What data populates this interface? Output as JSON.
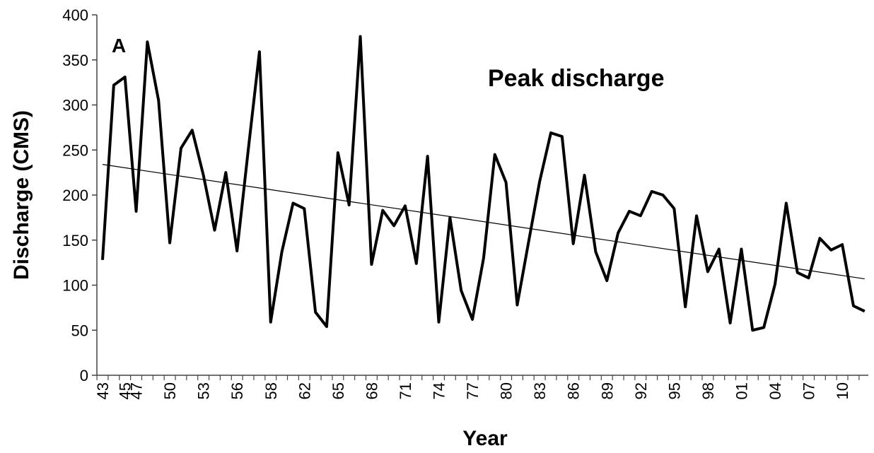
{
  "chart_data": {
    "type": "line",
    "panel_label": "A",
    "annotation": "Peak discharge",
    "x_label": "Year",
    "y_label": "Discharge (CMS)",
    "categories": [
      "43",
      null,
      "45",
      "47",
      null,
      null,
      "50",
      null,
      null,
      "53",
      null,
      null,
      "56",
      null,
      null,
      "58",
      null,
      null,
      "62",
      null,
      null,
      "65",
      null,
      null,
      "68",
      null,
      null,
      "71",
      null,
      null,
      "74",
      null,
      null,
      "77",
      null,
      null,
      "80",
      null,
      null,
      "83",
      null,
      null,
      "86",
      null,
      null,
      "89",
      null,
      null,
      "92",
      null,
      null,
      "95",
      null,
      null,
      "98",
      null,
      null,
      "01",
      null,
      null,
      "04",
      null,
      null,
      "07",
      null,
      null,
      "10",
      null,
      null
    ],
    "values": [
      128,
      322,
      331,
      182,
      370,
      305,
      147,
      252,
      272,
      222,
      161,
      225,
      138,
      250,
      359,
      59,
      137,
      191,
      185,
      70,
      54,
      247,
      189,
      376,
      123,
      183,
      166,
      188,
      124,
      243,
      59,
      175,
      94,
      62,
      130,
      245,
      214,
      78,
      147,
      215,
      269,
      265,
      146,
      222,
      137,
      105,
      158,
      182,
      177,
      204,
      200,
      185,
      76,
      177,
      115,
      140,
      58,
      140,
      50,
      53,
      101,
      191,
      114,
      108,
      152,
      139,
      145,
      77,
      71
    ],
    "trendline": [
      234,
      107
    ],
    "color": "#000000",
    "ylim": [
      0,
      400
    ],
    "yticks": [
      0,
      50,
      100,
      150,
      200,
      250,
      300,
      350,
      400
    ]
  }
}
